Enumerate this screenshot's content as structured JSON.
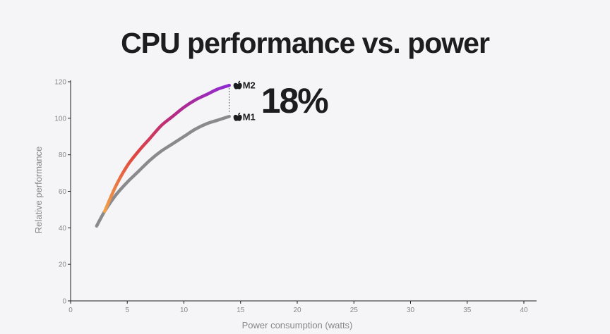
{
  "page": {
    "title": "CPU performance vs. power",
    "background": "#f5f5f7"
  },
  "chart_data": {
    "type": "line",
    "title": "CPU performance vs. power",
    "xlabel": "Power consumption (watts)",
    "ylabel": "Relative performance",
    "xlim": [
      0,
      40
    ],
    "ylim": [
      0,
      120
    ],
    "xticks": [
      0,
      5,
      10,
      15,
      20,
      25,
      30,
      35,
      40
    ],
    "yticks": [
      0,
      20,
      40,
      60,
      80,
      100,
      120
    ],
    "grid": false,
    "series": [
      {
        "name": "M1",
        "color": "#8a8a8e",
        "x": [
          2.3,
          3,
          4,
          5,
          6,
          7,
          8,
          9,
          10,
          11,
          12,
          13,
          14
        ],
        "y": [
          41,
          49,
          58,
          65,
          71,
          77,
          82,
          86,
          90,
          94,
          97,
          99,
          101
        ]
      },
      {
        "name": "M2",
        "gradient": [
          "#f2a34a",
          "#e0473f",
          "#b52a84",
          "#8f2bd4"
        ],
        "x": [
          3,
          4,
          5,
          6,
          7,
          8,
          9,
          10,
          11,
          12,
          13,
          14
        ],
        "y": [
          49,
          63,
          74,
          82,
          89,
          96,
          101,
          106,
          110,
          113,
          116,
          118
        ]
      }
    ],
    "annotation": {
      "text": "18%",
      "x": 14
    },
    "colors": {
      "axis": "#1d1d1f",
      "tick_text": "#86868b",
      "text": "#1d1d1f",
      "connector": "#555555"
    }
  }
}
